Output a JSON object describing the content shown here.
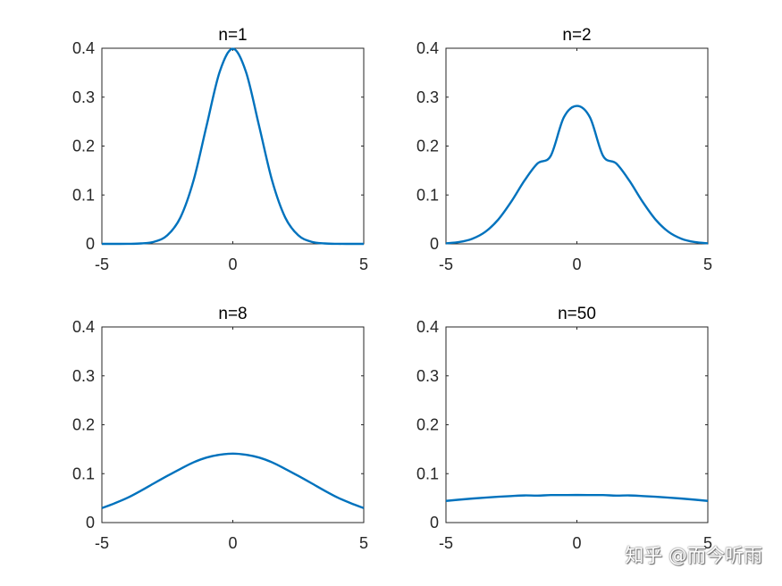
{
  "watermark": "知乎 @而今听雨",
  "colors": {
    "line": "#0072BD"
  },
  "chart_data": [
    {
      "type": "line",
      "title": "n=1",
      "xlim": [
        -5,
        5
      ],
      "ylim": [
        0,
        0.4
      ],
      "xticks": [
        -5,
        0,
        5
      ],
      "yticks": [
        0,
        0.1,
        0.2,
        0.3,
        0.4
      ],
      "xtick_labels": [
        "-5",
        "0",
        "5"
      ],
      "ytick_labels": [
        "0",
        "0.1",
        "0.2",
        "0.3",
        "0.4"
      ],
      "x": [
        -5,
        -4.5,
        -4,
        -3.5,
        -3,
        -2.5,
        -2,
        -1.5,
        -1,
        -0.5,
        0,
        0.5,
        1,
        1.5,
        2,
        2.5,
        3,
        3.5,
        4,
        4.5,
        5
      ],
      "y": [
        0.0,
        0.0,
        0.0001,
        0.0009,
        0.0044,
        0.0175,
        0.054,
        0.1295,
        0.242,
        0.3521,
        0.3989,
        0.3521,
        0.242,
        0.1295,
        0.054,
        0.0175,
        0.0044,
        0.0009,
        0.0001,
        0.0,
        0.0
      ]
    },
    {
      "type": "line",
      "title": "n=2",
      "xlim": [
        -5,
        5
      ],
      "ylim": [
        0,
        0.4
      ],
      "xticks": [
        -5,
        0,
        5
      ],
      "yticks": [
        0,
        0.1,
        0.2,
        0.3,
        0.4
      ],
      "xtick_labels": [
        "-5",
        "0",
        "5"
      ],
      "ytick_labels": [
        "0",
        "0.1",
        "0.2",
        "0.3",
        "0.4"
      ],
      "x": [
        -5,
        -4.5,
        -4,
        -3.5,
        -3,
        -2.5,
        -2,
        -1.5,
        -1,
        -0.5,
        0,
        0.5,
        1,
        1.5,
        2,
        2.5,
        3,
        3.5,
        4,
        4.5,
        5
      ],
      "y": [
        0.0011,
        0.0037,
        0.0103,
        0.0245,
        0.0499,
        0.0868,
        0.1295,
        0.1646,
        0.1799,
        0.2585,
        0.2821,
        0.2585,
        0.1799,
        0.1646,
        0.1295,
        0.0868,
        0.0499,
        0.0245,
        0.0103,
        0.0037,
        0.0011
      ]
    },
    {
      "type": "line",
      "title": "n=8",
      "xlim": [
        -5,
        5
      ],
      "ylim": [
        0,
        0.4
      ],
      "xticks": [
        -5,
        0,
        5
      ],
      "yticks": [
        0,
        0.1,
        0.2,
        0.3,
        0.4
      ],
      "xtick_labels": [
        "-5",
        "0",
        "5"
      ],
      "ytick_labels": [
        "0",
        "0.1",
        "0.2",
        "0.3",
        "0.4"
      ],
      "x": [
        -5,
        -4.5,
        -4,
        -3.5,
        -3,
        -2.5,
        -2,
        -1.5,
        -1,
        -0.5,
        0,
        0.5,
        1,
        1.5,
        2,
        2.5,
        3,
        3.5,
        4,
        4.5,
        5
      ],
      "y": [
        0.0296,
        0.0397,
        0.0512,
        0.0654,
        0.0806,
        0.0955,
        0.1098,
        0.1232,
        0.133,
        0.1387,
        0.141,
        0.1387,
        0.133,
        0.1232,
        0.1098,
        0.0955,
        0.0806,
        0.0654,
        0.0512,
        0.0397,
        0.0296
      ]
    },
    {
      "type": "line",
      "title": "n=50",
      "xlim": [
        -5,
        5
      ],
      "ylim": [
        0,
        0.4
      ],
      "xticks": [
        -5,
        0,
        5
      ],
      "yticks": [
        0,
        0.1,
        0.2,
        0.3,
        0.4
      ],
      "xtick_labels": [
        "-5",
        "0",
        "5"
      ],
      "ytick_labels": [
        "0",
        "0.1",
        "0.2",
        "0.3",
        "0.4"
      ],
      "x": [
        -5,
        -4.5,
        -4,
        -3.5,
        -3,
        -2.5,
        -2,
        -1.5,
        -1,
        -0.5,
        0,
        0.5,
        1,
        1.5,
        2,
        2.5,
        3,
        3.5,
        4,
        4.5,
        5
      ],
      "y": [
        0.0443,
        0.0468,
        0.0491,
        0.0511,
        0.0528,
        0.0543,
        0.0555,
        0.0552,
        0.0562,
        0.0563,
        0.0564,
        0.0563,
        0.0562,
        0.0552,
        0.0555,
        0.0543,
        0.0528,
        0.0511,
        0.0491,
        0.0468,
        0.0443
      ]
    }
  ]
}
